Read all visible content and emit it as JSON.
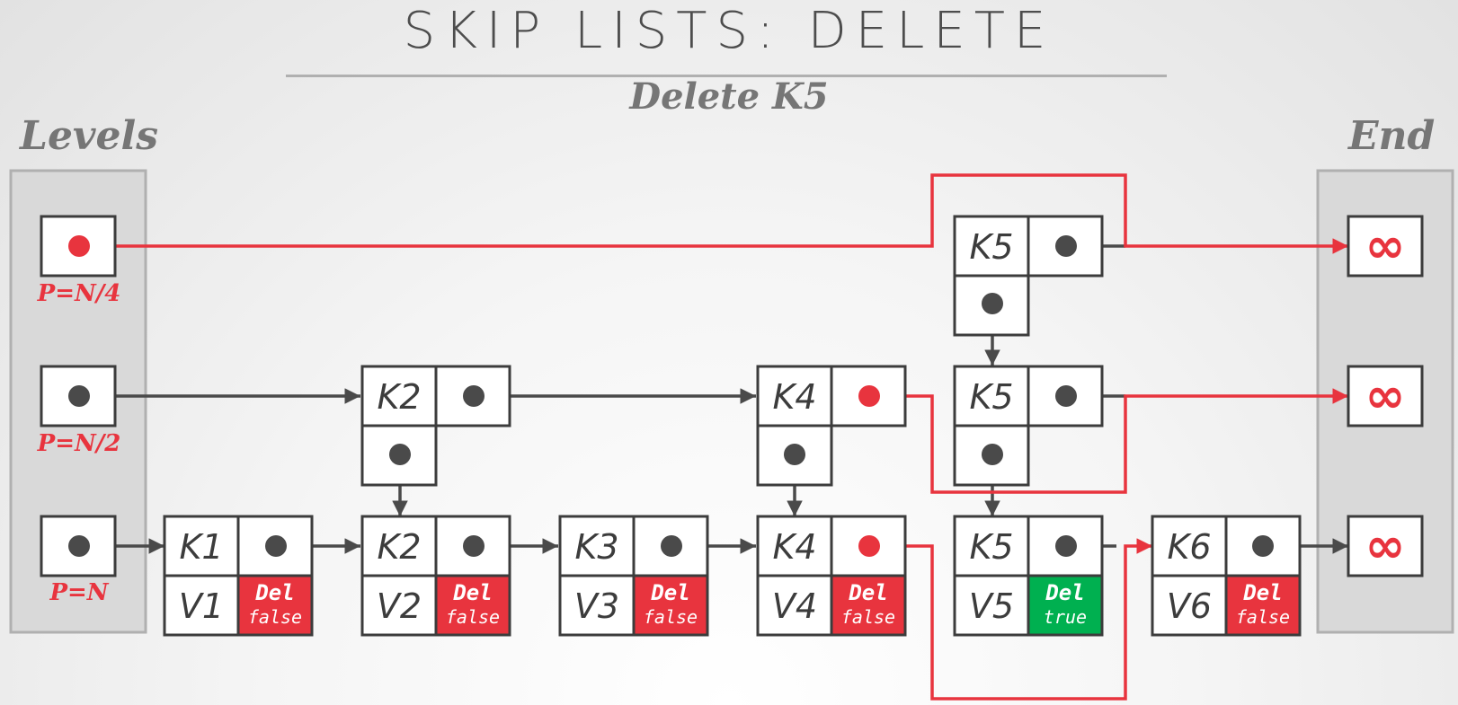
{
  "title": "SKIP LISTS: DELETE",
  "subtitle": "Delete K5",
  "levels_label": "Levels",
  "end_label": "End",
  "colors": {
    "red": "#e8343e",
    "green": "#00b050",
    "dark": "#3c3c3c",
    "panel": "#d9d9d9"
  },
  "levels": [
    {
      "p_label": "P=N/4"
    },
    {
      "p_label": "P=N/2"
    },
    {
      "p_label": "P=N"
    }
  ],
  "end_symbol": "∞",
  "upper_nodes": [
    {
      "key": "K2",
      "level": 2
    },
    {
      "key": "K4",
      "level": 2
    },
    {
      "key": "K5",
      "level": 2
    },
    {
      "key": "K5",
      "level": 1
    }
  ],
  "bottom_nodes": [
    {
      "key": "K1",
      "value": "V1",
      "del_label": "Del",
      "del_value": "false"
    },
    {
      "key": "K2",
      "value": "V2",
      "del_label": "Del",
      "del_value": "false"
    },
    {
      "key": "K3",
      "value": "V3",
      "del_label": "Del",
      "del_value": "false"
    },
    {
      "key": "K4",
      "value": "V4",
      "del_label": "Del",
      "del_value": "false"
    },
    {
      "key": "K5",
      "value": "V5",
      "del_label": "Del",
      "del_value": "true"
    },
    {
      "key": "K6",
      "value": "V6",
      "del_label": "Del",
      "del_value": "false"
    }
  ]
}
